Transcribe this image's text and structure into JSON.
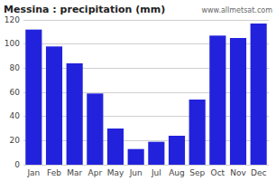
{
  "chart_data": {
    "type": "bar",
    "title": "Messina : precipitation (mm)",
    "categories": [
      "Jan",
      "Feb",
      "Mar",
      "Apr",
      "May",
      "Jun",
      "Jul",
      "Aug",
      "Sep",
      "Oct",
      "Nov",
      "Dec"
    ],
    "values": [
      112,
      98,
      84,
      59,
      30,
      13,
      19,
      24,
      54,
      107,
      105,
      117
    ],
    "color": "#2222dd",
    "ylim": [
      0,
      120
    ],
    "yticks": [
      0,
      20,
      40,
      60,
      80,
      100,
      120
    ],
    "grid": true,
    "annotations": [
      "www.allmetsat.com"
    ]
  }
}
